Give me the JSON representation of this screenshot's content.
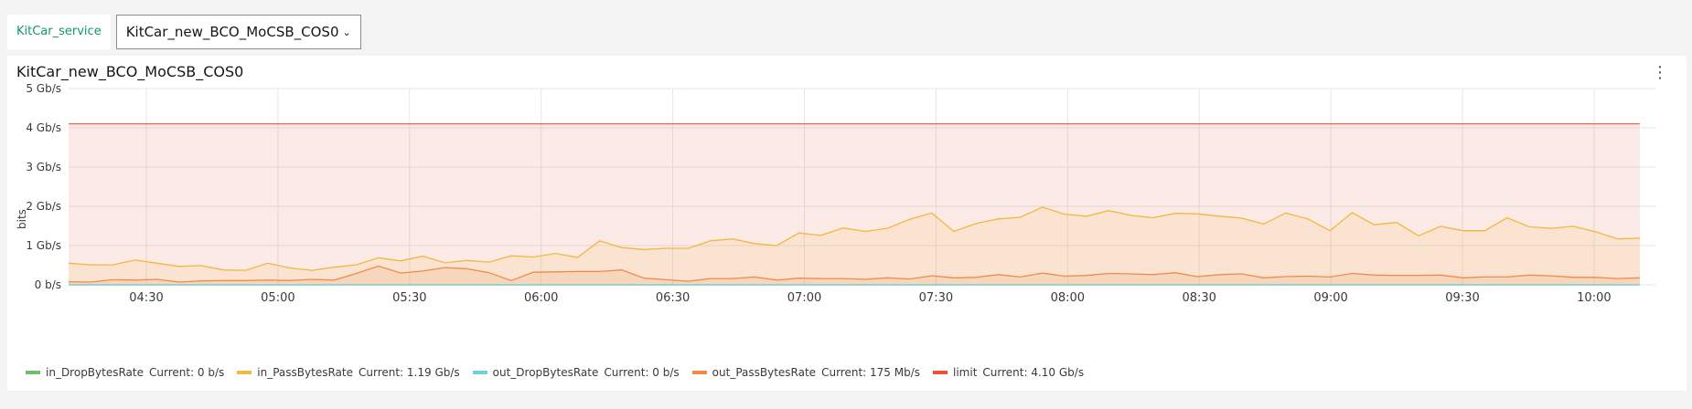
{
  "service": {
    "label": "KitCar_service"
  },
  "selector": {
    "value": "KitCar_new_BCO_MoCSB_COS0",
    "chevron": "chevron-down-icon"
  },
  "panel": {
    "title": "KitCar_new_BCO_MoCSB_COS0",
    "menu_icon": "overflow-menu-vertical-icon",
    "menu_glyph": "⋮"
  },
  "chart_data": {
    "type": "area",
    "ylabel": "bits",
    "ylim_gbps": [
      0,
      5
    ],
    "y_ticks": [
      "0 b/s",
      "1 Gb/s",
      "2 Gb/s",
      "3 Gb/s",
      "4 Gb/s",
      "5 Gb/s"
    ],
    "x_ticks": [
      "04:30",
      "05:00",
      "05:30",
      "06:00",
      "06:30",
      "07:00",
      "07:30",
      "08:00",
      "08:30",
      "09:00",
      "09:30",
      "10:00"
    ],
    "grid": true,
    "legend_position": "bottom-left",
    "series": [
      {
        "name": "in_DropBytesRate",
        "current": "0 b/s",
        "color": "#73bf69",
        "values": [
          0
        ]
      },
      {
        "name": "in_PassBytesRate",
        "current": "1.19 Gb/s",
        "color": "#f2b740",
        "values": [
          0.55,
          0.51,
          0.51,
          0.63,
          0.55,
          0.47,
          0.49,
          0.38,
          0.37,
          0.55,
          0.43,
          0.37,
          0.45,
          0.51,
          0.69,
          0.61,
          0.73,
          0.56,
          0.62,
          0.58,
          0.74,
          0.71,
          0.8,
          0.7,
          1.12,
          0.95,
          0.9,
          0.93,
          0.93,
          1.12,
          1.17,
          1.05,
          1.0,
          1.32,
          1.26,
          1.45,
          1.36,
          1.44,
          1.67,
          1.83,
          1.36,
          1.56,
          1.68,
          1.72,
          1.98,
          1.8,
          1.75,
          1.89,
          1.77,
          1.71,
          1.82,
          1.81,
          1.75,
          1.7,
          1.55,
          1.83,
          1.68,
          1.38,
          1.84,
          1.53,
          1.59,
          1.25,
          1.49,
          1.38,
          1.38,
          1.71,
          1.48,
          1.44,
          1.49,
          1.35,
          1.17,
          1.19
        ]
      },
      {
        "name": "out_DropBytesRate",
        "current": "0 b/s",
        "color": "#6fcfe0",
        "values": [
          0
        ]
      },
      {
        "name": "out_PassBytesRate",
        "current": "175 Mb/s",
        "color": "#f08a4b",
        "values": [
          0.08,
          0.07,
          0.13,
          0.12,
          0.14,
          0.07,
          0.1,
          0.11,
          0.11,
          0.12,
          0.11,
          0.14,
          0.12,
          0.29,
          0.48,
          0.3,
          0.35,
          0.44,
          0.41,
          0.31,
          0.11,
          0.32,
          0.33,
          0.34,
          0.34,
          0.38,
          0.17,
          0.13,
          0.09,
          0.16,
          0.16,
          0.2,
          0.12,
          0.17,
          0.16,
          0.16,
          0.14,
          0.18,
          0.15,
          0.23,
          0.18,
          0.19,
          0.26,
          0.2,
          0.3,
          0.22,
          0.24,
          0.29,
          0.28,
          0.26,
          0.31,
          0.21,
          0.26,
          0.28,
          0.18,
          0.21,
          0.22,
          0.2,
          0.29,
          0.25,
          0.24,
          0.24,
          0.25,
          0.18,
          0.2,
          0.2,
          0.25,
          0.23,
          0.19,
          0.19,
          0.16,
          0.18
        ]
      },
      {
        "name": "limit",
        "current": "4.10 Gb/s",
        "color": "#e8533d",
        "values": [
          4.1
        ]
      }
    ]
  },
  "legend": [
    {
      "name": "in_DropBytesRate",
      "current": "Current: 0 b/s",
      "color": "#73bf69"
    },
    {
      "name": "in_PassBytesRate",
      "current": "Current: 1.19 Gb/s",
      "color": "#f2b740"
    },
    {
      "name": "out_DropBytesRate",
      "current": "Current: 0 b/s",
      "color": "#6fcfe0"
    },
    {
      "name": "out_PassBytesRate",
      "current": "Current: 175 Mb/s",
      "color": "#f08a4b"
    },
    {
      "name": "limit",
      "current": "Current: 4.10 Gb/s",
      "color": "#e8533d"
    }
  ]
}
